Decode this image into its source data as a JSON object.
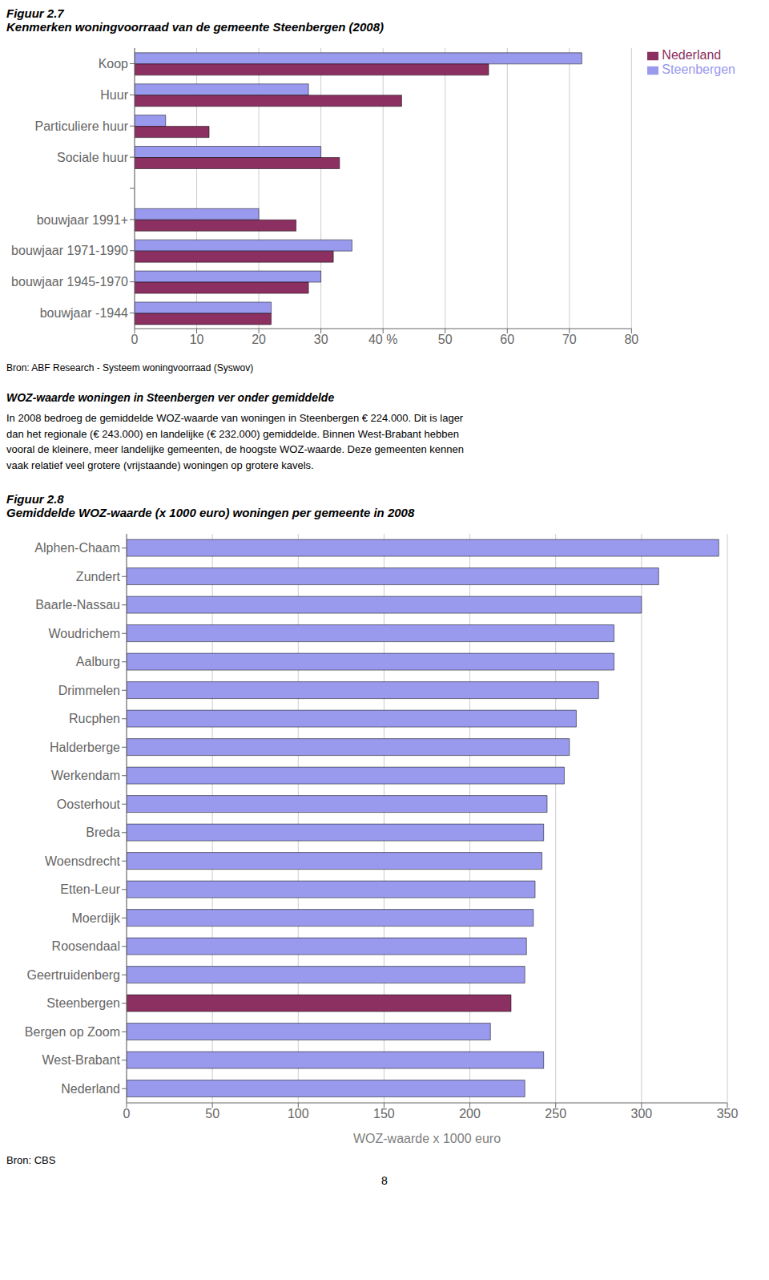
{
  "chart_data": [
    {
      "type": "bar",
      "orientation": "horizontal",
      "title": "Figuur 2.7",
      "subtitle": "Kenmerken woningvoorraad van de gemeente Steenbergen (2008)",
      "categories": [
        "Koop",
        "Huur",
        "Particuliere huur",
        "Sociale huur",
        null,
        "bouwjaar 1991+",
        "bouwjaar 1971-1990",
        "bouwjaar 1945-1970",
        "bouwjaar -1944"
      ],
      "series": [
        {
          "name": "Steenbergen",
          "color": "#9999EE",
          "values": [
            72,
            28,
            5,
            30,
            null,
            20,
            35,
            30,
            22
          ]
        },
        {
          "name": "Nederland",
          "color": "#8B3060",
          "values": [
            57,
            43,
            12,
            33,
            null,
            26,
            32,
            28,
            22
          ]
        }
      ],
      "xlim": [
        0,
        80
      ],
      "xticks": [
        0,
        10,
        20,
        30,
        {
          "value": 40,
          "label": "40 %"
        },
        50,
        60,
        70,
        80
      ],
      "grid": true,
      "legend": "right",
      "annotations": [
        "Bron: ABF Research - Systeem woningvoorraad (Syswov)",
        "WOZ-waarde woningen in Steenbergen ver onder gemiddelde",
        "In 2008 bedroeg de gemiddelde WOZ-waarde van woningen in Steenbergen € 224.000. Dit is lager\ndan het regionale (€ 243.000) en landelijke (€ 232.000) gemiddelde. Binnen West-Brabant hebben\nvooral de kleinere, meer landelijke gemeenten, de hoogste WOZ-waarde. Deze gemeenten kennen\nvaak relatief veel grotere (vrijstaande) woningen op grotere kavels."
      ]
    },
    {
      "type": "bar",
      "orientation": "horizontal",
      "title": "Figuur 2.8",
      "subtitle": "Gemiddelde WOZ-waarde (x 1000 euro) woningen per gemeente in 2008",
      "categories": [
        "Alphen-Chaam",
        "Zundert",
        "Baarle-Nassau",
        "Woudrichem",
        "Aalburg",
        "Drimmelen",
        "Rucphen",
        "Halderberge",
        "Werkendam",
        "Oosterhout",
        "Breda",
        "Woensdrecht",
        "Etten-Leur",
        "Moerdijk",
        "Roosendaal",
        "Geertruidenberg",
        "Steenbergen",
        "Bergen op Zoom",
        "West-Brabant",
        "Nederland"
      ],
      "values": [
        345,
        310,
        300,
        284,
        284,
        275,
        262,
        258,
        255,
        245,
        243,
        242,
        238,
        237,
        233,
        232,
        224,
        212,
        243,
        232
      ],
      "colors": [
        "#9999EE",
        "#9999EE",
        "#9999EE",
        "#9999EE",
        "#9999EE",
        "#9999EE",
        "#9999EE",
        "#9999EE",
        "#9999EE",
        "#9999EE",
        "#9999EE",
        "#9999EE",
        "#9999EE",
        "#9999EE",
        "#9999EE",
        "#9999EE",
        "#8B3060",
        "#9999EE",
        "#9999EE",
        "#9999EE"
      ],
      "xlabel": "WOZ-waarde x 1000 euro",
      "xlim": [
        0,
        350
      ],
      "xticks": [
        0,
        50,
        100,
        150,
        200,
        250,
        300,
        350
      ],
      "grid": true,
      "annotations": [
        "Bron: CBS",
        "8"
      ]
    }
  ]
}
